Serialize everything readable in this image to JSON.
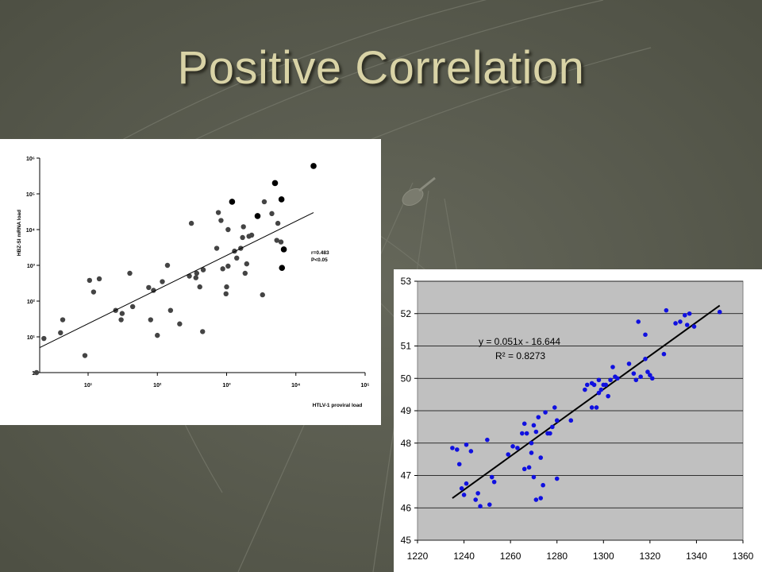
{
  "slide": {
    "title": "Positive Correlation"
  },
  "colors": {
    "background": "#5c5e4e",
    "title": "#d9d3a6",
    "plot_area_right": "#c0c0c0",
    "points_right": "#1010e0",
    "points_left": "#444444"
  },
  "chart_data": [
    {
      "type": "scatter",
      "xlabel": "HTLV-1 proviral load",
      "ylabel": "HBZ-SI mRNA load",
      "xscale": "log",
      "yscale": "log",
      "x_ticks": [
        "10¹",
        "10²",
        "10³",
        "10⁴",
        "10⁵"
      ],
      "y_ticks": [
        "1",
        "10¹",
        "10²",
        "10³",
        "10⁴",
        "10⁵",
        "10⁶"
      ],
      "xlim": [
        2,
        100000
      ],
      "ylim": [
        1,
        1000000
      ],
      "annotation": [
        "r=0.483",
        "P<0.05"
      ],
      "trendline": {
        "x": [
          2,
          18000
        ],
        "y": [
          5,
          30000
        ]
      },
      "points": [
        {
          "x": 1.8,
          "y": 1
        },
        {
          "x": 2.3,
          "y": 9
        },
        {
          "x": 4,
          "y": 13
        },
        {
          "x": 4.3,
          "y": 30
        },
        {
          "x": 9,
          "y": 3
        },
        {
          "x": 10.5,
          "y": 380
        },
        {
          "x": 12,
          "y": 180
        },
        {
          "x": 14.5,
          "y": 420
        },
        {
          "x": 25,
          "y": 55
        },
        {
          "x": 30,
          "y": 30
        },
        {
          "x": 31,
          "y": 45
        },
        {
          "x": 40,
          "y": 600
        },
        {
          "x": 44,
          "y": 70
        },
        {
          "x": 75,
          "y": 240
        },
        {
          "x": 80,
          "y": 30
        },
        {
          "x": 88,
          "y": 200
        },
        {
          "x": 100,
          "y": 11
        },
        {
          "x": 118,
          "y": 350
        },
        {
          "x": 140,
          "y": 1000
        },
        {
          "x": 155,
          "y": 55
        },
        {
          "x": 210,
          "y": 23
        },
        {
          "x": 290,
          "y": 500
        },
        {
          "x": 310,
          "y": 15000
        },
        {
          "x": 360,
          "y": 450
        },
        {
          "x": 370,
          "y": 600
        },
        {
          "x": 410,
          "y": 250
        },
        {
          "x": 450,
          "y": 14
        },
        {
          "x": 460,
          "y": 750
        },
        {
          "x": 720,
          "y": 3000
        },
        {
          "x": 760,
          "y": 30000
        },
        {
          "x": 830,
          "y": 18000
        },
        {
          "x": 880,
          "y": 800
        },
        {
          "x": 980,
          "y": 160
        },
        {
          "x": 1000,
          "y": 250
        },
        {
          "x": 1050,
          "y": 950
        },
        {
          "x": 1050,
          "y": 10000
        },
        {
          "x": 1300,
          "y": 2500
        },
        {
          "x": 1400,
          "y": 1600
        },
        {
          "x": 1600,
          "y": 3000
        },
        {
          "x": 1700,
          "y": 6000
        },
        {
          "x": 1750,
          "y": 12000
        },
        {
          "x": 1850,
          "y": 600
        },
        {
          "x": 1950,
          "y": 1100
        },
        {
          "x": 2100,
          "y": 6500
        },
        {
          "x": 2300,
          "y": 7000
        },
        {
          "x": 3300,
          "y": 150
        },
        {
          "x": 3500,
          "y": 60000
        },
        {
          "x": 4500,
          "y": 28000
        },
        {
          "x": 5300,
          "y": 5000
        },
        {
          "x": 5500,
          "y": 15000
        },
        {
          "x": 6100,
          "y": 4500
        }
      ],
      "highlight_points": [
        {
          "x": 1200,
          "y": 60000
        },
        {
          "x": 2800,
          "y": 24000
        },
        {
          "x": 5000,
          "y": 200000
        },
        {
          "x": 6200,
          "y": 70000
        },
        {
          "x": 6700,
          "y": 2800
        },
        {
          "x": 6300,
          "y": 850
        },
        {
          "x": 18000,
          "y": 600000
        }
      ]
    },
    {
      "type": "scatter",
      "x_ticks": [
        "1220",
        "1240",
        "1260",
        "1280",
        "1300",
        "1320",
        "1340",
        "1360"
      ],
      "y_ticks": [
        "45",
        "46",
        "47",
        "48",
        "49",
        "50",
        "51",
        "52",
        "53"
      ],
      "xlim": [
        1220,
        1360
      ],
      "ylim": [
        45,
        53
      ],
      "grid": true,
      "equation": "y = 0.051x - 16.644",
      "r_squared": "R² = 0.8273",
      "trendline": {
        "x": [
          1235,
          1350
        ],
        "y": [
          46.3,
          52.25
        ]
      },
      "points": [
        {
          "x": 1235,
          "y": 47.85
        },
        {
          "x": 1237,
          "y": 47.8
        },
        {
          "x": 1238,
          "y": 47.35
        },
        {
          "x": 1239,
          "y": 46.6
        },
        {
          "x": 1240,
          "y": 46.4
        },
        {
          "x": 1241,
          "y": 47.95
        },
        {
          "x": 1241,
          "y": 46.75
        },
        {
          "x": 1243,
          "y": 47.75
        },
        {
          "x": 1245,
          "y": 46.25
        },
        {
          "x": 1246,
          "y": 46.45
        },
        {
          "x": 1247,
          "y": 46.05
        },
        {
          "x": 1250,
          "y": 48.1
        },
        {
          "x": 1251,
          "y": 46.1
        },
        {
          "x": 1252,
          "y": 46.95
        },
        {
          "x": 1253,
          "y": 46.8
        },
        {
          "x": 1259,
          "y": 47.65
        },
        {
          "x": 1261,
          "y": 47.9
        },
        {
          "x": 1263,
          "y": 47.85
        },
        {
          "x": 1265,
          "y": 48.3
        },
        {
          "x": 1266,
          "y": 47.2
        },
        {
          "x": 1266,
          "y": 48.6
        },
        {
          "x": 1267,
          "y": 48.3
        },
        {
          "x": 1268,
          "y": 47.25
        },
        {
          "x": 1269,
          "y": 48.0
        },
        {
          "x": 1269,
          "y": 47.7
        },
        {
          "x": 1270,
          "y": 48.55
        },
        {
          "x": 1270,
          "y": 46.95
        },
        {
          "x": 1271,
          "y": 46.25
        },
        {
          "x": 1271,
          "y": 48.35
        },
        {
          "x": 1272,
          "y": 48.8
        },
        {
          "x": 1273,
          "y": 47.55
        },
        {
          "x": 1273,
          "y": 46.3
        },
        {
          "x": 1274,
          "y": 46.7
        },
        {
          "x": 1275,
          "y": 48.95
        },
        {
          "x": 1276,
          "y": 48.3
        },
        {
          "x": 1277,
          "y": 48.3
        },
        {
          "x": 1278,
          "y": 48.5
        },
        {
          "x": 1279,
          "y": 49.1
        },
        {
          "x": 1280,
          "y": 46.9
        },
        {
          "x": 1280,
          "y": 48.7
        },
        {
          "x": 1286,
          "y": 48.7
        },
        {
          "x": 1292,
          "y": 49.65
        },
        {
          "x": 1293,
          "y": 49.8
        },
        {
          "x": 1295,
          "y": 49.85
        },
        {
          "x": 1295,
          "y": 49.1
        },
        {
          "x": 1296,
          "y": 49.8
        },
        {
          "x": 1297,
          "y": 49.1
        },
        {
          "x": 1298,
          "y": 49.55
        },
        {
          "x": 1298,
          "y": 49.95
        },
        {
          "x": 1299,
          "y": 49.65
        },
        {
          "x": 1300,
          "y": 49.8
        },
        {
          "x": 1301,
          "y": 49.8
        },
        {
          "x": 1302,
          "y": 49.45
        },
        {
          "x": 1303,
          "y": 49.95
        },
        {
          "x": 1304,
          "y": 50.35
        },
        {
          "x": 1305,
          "y": 50.05
        },
        {
          "x": 1306,
          "y": 50.0
        },
        {
          "x": 1311,
          "y": 50.45
        },
        {
          "x": 1313,
          "y": 50.15
        },
        {
          "x": 1314,
          "y": 49.95
        },
        {
          "x": 1315,
          "y": 51.75
        },
        {
          "x": 1316,
          "y": 50.05
        },
        {
          "x": 1318,
          "y": 50.6
        },
        {
          "x": 1318,
          "y": 51.35
        },
        {
          "x": 1319,
          "y": 50.2
        },
        {
          "x": 1320,
          "y": 50.1
        },
        {
          "x": 1321,
          "y": 50.0
        },
        {
          "x": 1326,
          "y": 50.75
        },
        {
          "x": 1327,
          "y": 52.1
        },
        {
          "x": 1331,
          "y": 51.7
        },
        {
          "x": 1333,
          "y": 51.75
        },
        {
          "x": 1335,
          "y": 51.95
        },
        {
          "x": 1336,
          "y": 51.65
        },
        {
          "x": 1337,
          "y": 52.0
        },
        {
          "x": 1339,
          "y": 51.6
        },
        {
          "x": 1350,
          "y": 52.05
        }
      ]
    }
  ]
}
